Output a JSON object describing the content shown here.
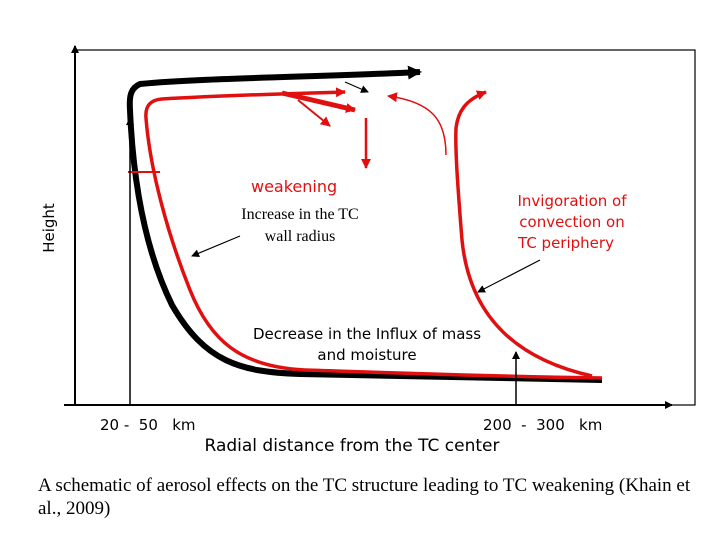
{
  "diagram": {
    "axis": {
      "y_label": "Height",
      "x_label": "Radial distance from the TC center",
      "tick_left": "20 -  50   km",
      "tick_right": "200  -  300   km"
    },
    "annotations": {
      "weakening": "weakening",
      "wall_radius_line1": "Increase in the TC",
      "wall_radius_line2": "wall radius",
      "invigoration_line1": "Invigoration of",
      "invigoration_line2": "convection on",
      "invigoration_line3": "TC periphery",
      "influx_line1": "Decrease in the Influx of mass",
      "influx_line2": "and moisture"
    },
    "colors": {
      "initial_circulation": "#000000",
      "aerosol_affected_circulation": "#e01010",
      "annotation_red": "#e01010",
      "frame": "#000000"
    }
  },
  "caption": {
    "text": "A schematic of aerosol effects on the TC structure leading to TC weakening (Khain et al., 2009)"
  }
}
